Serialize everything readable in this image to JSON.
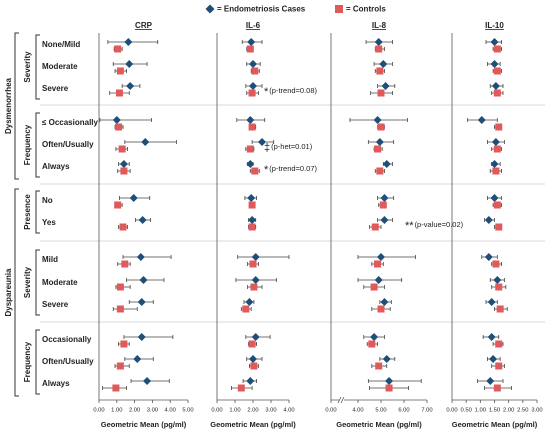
{
  "legend": [
    {
      "name": "= Endometriosis Cases",
      "color": "#1f4e79"
    },
    {
      "name": "= Controls",
      "color": "#e05a5a"
    }
  ],
  "groups": [
    {
      "label": "Dysmenorrhea",
      "subgroups": [
        {
          "label": "Severity",
          "rows": [
            "None/Mild",
            "Moderate",
            "Severe"
          ]
        },
        {
          "label": "Frequency",
          "rows": [
            "≤ Occasionally",
            "Often/Usually",
            "Always"
          ]
        }
      ]
    },
    {
      "label": "Dyspareunia",
      "subgroups": [
        {
          "label": "Presence",
          "rows": [
            "No",
            "Yes"
          ]
        },
        {
          "label": "Severity",
          "rows": [
            "Mild",
            "Moderate",
            "Severe"
          ]
        },
        {
          "label": "Frequency",
          "rows": [
            "Occasionally",
            "Often/Usually",
            "Always"
          ]
        }
      ]
    }
  ],
  "chart_data": [
    {
      "type": "forest",
      "title": "CRP",
      "xlabel": "Geometric Mean (pg/ml)",
      "xlim": [
        0,
        5
      ],
      "xticks": [
        {
          "value": 0,
          "label": "0.00"
        },
        {
          "value": 1,
          "label": "1.00"
        },
        {
          "value": 2,
          "label": "2.00"
        },
        {
          "value": 3,
          "label": "3.00"
        },
        {
          "value": 4,
          "label": "4.00"
        },
        {
          "value": 5,
          "label": "5.00"
        }
      ],
      "cases": [
        [
          1.65,
          0.5,
          3.3
        ],
        [
          1.7,
          0.8,
          2.7
        ],
        [
          1.75,
          1.3,
          2.3
        ],
        [
          1.0,
          0.05,
          2.95
        ],
        [
          2.6,
          1.45,
          4.35
        ],
        [
          1.4,
          1.1,
          1.7
        ],
        [
          1.95,
          1.15,
          2.85
        ],
        [
          2.45,
          2.05,
          2.9
        ],
        [
          2.35,
          1.35,
          4.05
        ],
        [
          2.5,
          1.55,
          3.65
        ],
        [
          2.4,
          1.7,
          3.05
        ],
        [
          2.4,
          1.4,
          4.15
        ],
        [
          2.15,
          1.45,
          3.05
        ],
        [
          2.7,
          1.8,
          3.95
        ]
      ],
      "controls": [
        [
          1.05,
          0.85,
          1.3
        ],
        [
          1.2,
          0.9,
          1.55
        ],
        [
          1.15,
          0.6,
          1.7
        ],
        [
          1.1,
          0.9,
          1.35
        ],
        [
          1.3,
          0.95,
          1.6
        ],
        [
          1.4,
          1.05,
          1.75
        ],
        [
          1.05,
          0.9,
          1.3
        ],
        [
          1.35,
          1.1,
          1.6
        ],
        [
          1.45,
          1.05,
          1.75
        ],
        [
          1.2,
          0.95,
          1.75
        ],
        [
          1.2,
          0.8,
          2.15
        ],
        [
          1.4,
          1.1,
          1.7
        ],
        [
          1.2,
          0.9,
          1.7
        ],
        [
          0.95,
          0.2,
          1.55
        ]
      ]
    },
    {
      "type": "forest",
      "title": "IL-6",
      "xlabel": "Geometric Mean (pg/ml)",
      "xlim": [
        0,
        4
      ],
      "xticks": [
        {
          "value": 0,
          "label": "0.00"
        },
        {
          "value": 1,
          "label": "1.00"
        },
        {
          "value": 2,
          "label": "2.00"
        },
        {
          "value": 3,
          "label": "3.00"
        },
        {
          "value": 4,
          "label": "4.00"
        }
      ],
      "cases": [
        [
          1.9,
          1.4,
          2.5
        ],
        [
          2.0,
          1.65,
          2.4
        ],
        [
          2.0,
          1.6,
          2.5
        ],
        [
          1.85,
          1.1,
          2.65
        ],
        [
          2.5,
          1.95,
          3.15
        ],
        [
          1.85,
          1.7,
          2.0
        ],
        [
          1.9,
          1.55,
          2.2
        ],
        [
          1.95,
          1.75,
          2.15
        ],
        [
          2.15,
          1.15,
          4.0
        ],
        [
          2.15,
          1.05,
          3.3
        ],
        [
          1.8,
          1.5,
          2.05
        ],
        [
          2.15,
          1.6,
          2.95
        ],
        [
          2.0,
          1.65,
          2.5
        ],
        [
          1.85,
          1.45,
          2.2
        ]
      ],
      "controls": [
        [
          1.85,
          1.65,
          2.0
        ],
        [
          2.1,
          1.9,
          2.35
        ],
        [
          1.95,
          1.65,
          2.3
        ],
        [
          1.95,
          1.8,
          2.15
        ],
        [
          1.85,
          1.6,
          2.05
        ],
        [
          2.1,
          1.85,
          2.35
        ],
        [
          1.95,
          1.8,
          2.05
        ],
        [
          1.95,
          1.75,
          2.15
        ],
        [
          2.0,
          1.7,
          2.3
        ],
        [
          2.05,
          1.7,
          2.5
        ],
        [
          1.6,
          1.35,
          1.9
        ],
        [
          1.95,
          1.75,
          2.2
        ],
        [
          2.05,
          1.8,
          2.3
        ],
        [
          1.35,
          0.8,
          1.95
        ]
      ],
      "annotations": [
        null,
        null,
        {
          "symbol": "*",
          "text": "(p-trend=0.08)",
          "color": "#e05a5a"
        },
        null,
        {
          "symbol": "‡",
          "text": "(p-het=0.01)",
          "color": "#7030a0"
        },
        {
          "symbol": "*",
          "text": "(p-trend=0.07)",
          "color": "#1f4e79"
        },
        null,
        null,
        null,
        null,
        null,
        null,
        null,
        null
      ]
    },
    {
      "type": "forest",
      "title": "IL-8",
      "xlabel": "Geometric Mean (pg/ml)",
      "xlim": [
        0,
        7
      ],
      "axis_break": [
        0,
        3
      ],
      "xticks": [
        {
          "value": 0,
          "label": "0.00"
        },
        {
          "value": 4,
          "label": "4.00"
        },
        {
          "value": 5,
          "label": "5.00"
        },
        {
          "value": 6,
          "label": "6.00"
        },
        {
          "value": 7,
          "label": "7.00"
        }
      ],
      "cases": [
        [
          4.9,
          4.35,
          5.5
        ],
        [
          5.1,
          4.7,
          5.5
        ],
        [
          5.2,
          4.85,
          5.6
        ],
        [
          4.85,
          3.65,
          6.15
        ],
        [
          4.95,
          4.45,
          5.55
        ],
        [
          5.25,
          5.1,
          5.5
        ],
        [
          5.15,
          4.85,
          5.55
        ],
        [
          5.15,
          4.85,
          5.5
        ],
        [
          5.0,
          4.0,
          6.5
        ],
        [
          4.9,
          4.0,
          5.9
        ],
        [
          5.15,
          4.95,
          5.45
        ],
        [
          4.7,
          4.25,
          5.15
        ],
        [
          5.25,
          4.95,
          5.6
        ],
        [
          5.35,
          4.45,
          6.75
        ]
      ],
      "controls": [
        [
          4.9,
          4.75,
          5.15
        ],
        [
          4.95,
          4.75,
          5.15
        ],
        [
          5.0,
          4.55,
          5.5
        ],
        [
          5.0,
          4.85,
          5.15
        ],
        [
          4.85,
          4.7,
          5.05
        ],
        [
          4.95,
          4.75,
          5.15
        ],
        [
          5.1,
          4.9,
          5.2
        ],
        [
          4.75,
          4.5,
          5.0
        ],
        [
          4.85,
          4.6,
          5.1
        ],
        [
          4.7,
          4.25,
          5.15
        ],
        [
          5.0,
          4.6,
          5.4
        ],
        [
          4.6,
          4.4,
          4.85
        ],
        [
          4.9,
          4.6,
          5.25
        ],
        [
          5.35,
          4.5,
          6.2
        ]
      ],
      "annotations": [
        null,
        null,
        null,
        null,
        null,
        null,
        null,
        {
          "symbol": "**",
          "text": "(p-value=0.02)",
          "color": "#e05a5a"
        },
        null,
        null,
        null,
        null,
        null,
        null
      ]
    },
    {
      "type": "forest",
      "title": "IL-10",
      "xlabel": "Geometric Mean (pg/ml)",
      "xlim": [
        0,
        3
      ],
      "xticks": [
        {
          "value": 0,
          "label": "0.00"
        },
        {
          "value": 0.5,
          "label": "0.50"
        },
        {
          "value": 1,
          "label": "1.00"
        },
        {
          "value": 1.5,
          "label": "1.50"
        },
        {
          "value": 2,
          "label": "2.00"
        },
        {
          "value": 2.5,
          "label": "2.50"
        },
        {
          "value": 3,
          "label": "3.00"
        }
      ],
      "cases": [
        [
          1.5,
          1.2,
          1.75
        ],
        [
          1.5,
          1.25,
          1.7
        ],
        [
          1.55,
          1.35,
          1.8
        ],
        [
          1.05,
          0.55,
          1.6
        ],
        [
          1.55,
          1.25,
          1.85
        ],
        [
          1.5,
          1.4,
          1.7
        ],
        [
          1.5,
          1.25,
          1.75
        ],
        [
          1.3,
          1.15,
          1.5
        ],
        [
          1.3,
          1.05,
          1.6
        ],
        [
          1.6,
          1.35,
          1.85
        ],
        [
          1.4,
          1.2,
          1.6
        ],
        [
          1.4,
          1.1,
          1.65
        ],
        [
          1.45,
          1.25,
          1.7
        ],
        [
          1.35,
          0.9,
          1.8
        ]
      ],
      "controls": [
        [
          1.6,
          1.45,
          1.75
        ],
        [
          1.6,
          1.45,
          1.75
        ],
        [
          1.6,
          1.4,
          1.8
        ],
        [
          1.65,
          1.5,
          1.75
        ],
        [
          1.6,
          1.4,
          1.75
        ],
        [
          1.55,
          1.35,
          1.75
        ],
        [
          1.6,
          1.45,
          1.75
        ],
        [
          1.65,
          1.5,
          1.75
        ],
        [
          1.55,
          1.4,
          1.75
        ],
        [
          1.65,
          1.4,
          1.9
        ],
        [
          1.7,
          1.5,
          1.95
        ],
        [
          1.65,
          1.45,
          1.8
        ],
        [
          1.65,
          1.4,
          1.85
        ],
        [
          1.6,
          1.15,
          2.1
        ]
      ]
    }
  ]
}
